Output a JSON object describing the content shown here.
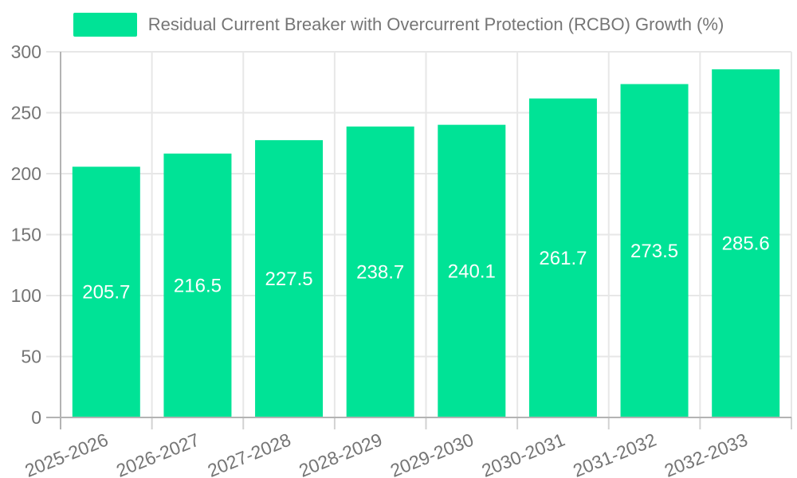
{
  "legend": {
    "label": "Residual Current Breaker with Overcurrent Protection (RCBO) Growth (%)"
  },
  "chart_data": {
    "type": "bar",
    "title": "Residual Current Breaker with Overcurrent Protection (RCBO) Growth (%)",
    "categories": [
      "2025-2026",
      "2026-2027",
      "2027-2028",
      "2028-2029",
      "2029-2030",
      "2030-2031",
      "2031-2032",
      "2032-2033"
    ],
    "values": [
      205.7,
      216.5,
      227.5,
      238.7,
      240.1,
      261.7,
      273.5,
      285.6
    ],
    "value_labels": [
      "205.7",
      "216.5",
      "227.5",
      "238.7",
      "240.1",
      "261.7",
      "273.5",
      "285.6"
    ],
    "xlabel": "",
    "ylabel": "",
    "ylim": [
      0,
      300
    ],
    "yticks": [
      0,
      50,
      100,
      150,
      200,
      250,
      300
    ],
    "grid": true,
    "legend_position": "top",
    "colors": {
      "bar": "#00E396",
      "value_label": "#ffffff",
      "axis_text": "#757575",
      "gridline": "#e7e7e7",
      "axis_line": "#b3b3b3",
      "tick_mark": "#d2d2d2",
      "background": "#ffffff"
    }
  }
}
